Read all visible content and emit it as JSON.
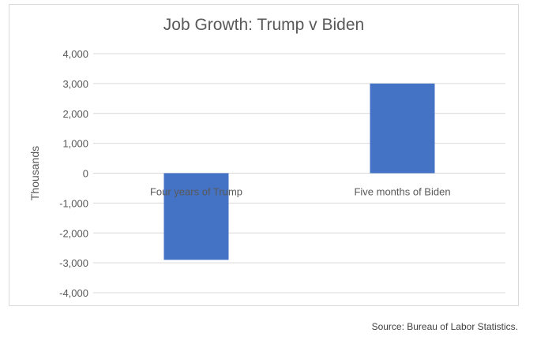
{
  "chart_data": {
    "type": "bar",
    "title": "Job Growth: Trump v Biden",
    "xlabel": "",
    "ylabel": "Thousands",
    "categories": [
      "Four years of Trump",
      "Five months of Biden"
    ],
    "values": [
      -2900,
      3000
    ],
    "ylim": [
      -4000,
      4000
    ],
    "yticks": [
      4000,
      3000,
      2000,
      1000,
      0,
      -1000,
      -2000,
      -3000,
      -4000
    ],
    "ytick_labels": [
      "4,000",
      "3,000",
      "2,000",
      "1,000",
      "0",
      "-1,000",
      "-2,000",
      "-3,000",
      "-4,000"
    ],
    "grid": true,
    "legend": "none",
    "bar_color": "#4472c4",
    "grid_color": "#d9d9d9"
  },
  "source": "Source: Bureau of Labor Statistics."
}
